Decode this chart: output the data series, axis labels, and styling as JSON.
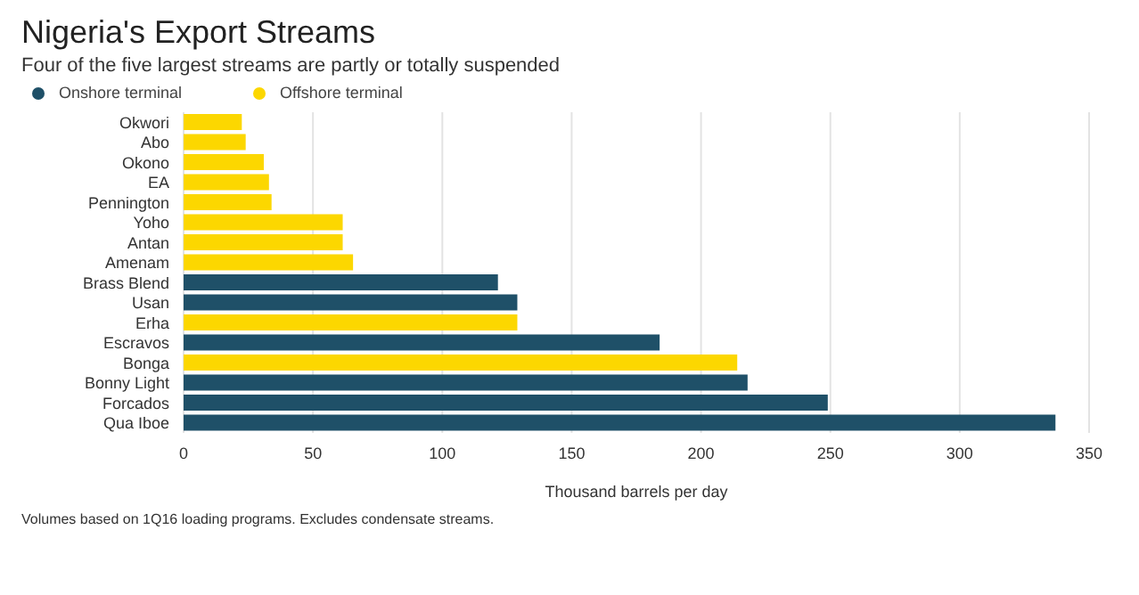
{
  "chart_data": {
    "type": "bar",
    "orientation": "horizontal",
    "stacked": true,
    "title": "Nigeria's Export Streams",
    "subtitle": "Four of the five largest streams are partly or totally suspended",
    "xlabel": "Thousand barrels per day",
    "categories": [
      "Okwori",
      "Abo",
      "Okono",
      "EA",
      "Pennington",
      "Yoho",
      "Antan",
      "Amenam",
      "Brass Blend",
      "Usan",
      "Erha",
      "Escravos",
      "Bonga",
      "Bonny Light",
      "Forcados",
      "Qua Iboe"
    ],
    "series": [
      {
        "name": "Onshore terminal",
        "color": "#1f5068",
        "values": [
          null,
          null,
          null,
          null,
          null,
          null,
          null,
          null,
          121.5,
          129,
          null,
          184,
          null,
          218,
          249,
          337
        ]
      },
      {
        "name": "Offshore terminal",
        "color": "#fcd700",
        "values": [
          22.5,
          24,
          31,
          33,
          34,
          61.5,
          61.5,
          65.5,
          null,
          null,
          129,
          null,
          214,
          null,
          null,
          null
        ]
      }
    ],
    "xlim": [
      0,
      350
    ],
    "xticks": [
      0,
      50,
      100,
      150,
      200,
      250,
      300,
      350
    ],
    "grid": "x",
    "legend": "top left",
    "annotations": [
      "Volumes based on 1Q16 loading programs. Excludes condensate streams."
    ]
  }
}
